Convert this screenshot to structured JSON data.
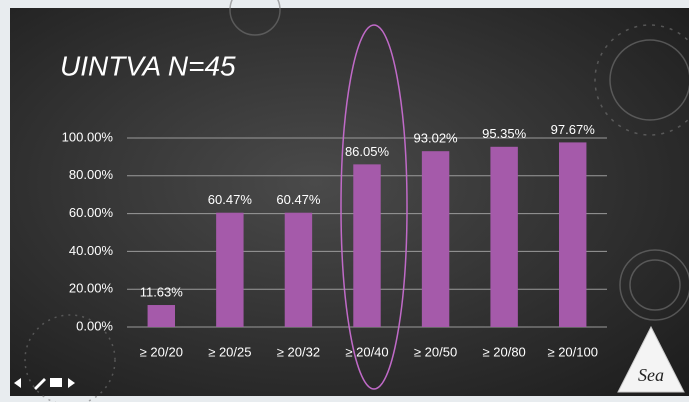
{
  "chart_data": {
    "type": "bar",
    "title": "UINTVA  N=45",
    "categories": [
      "≥ 20/20",
      "≥ 20/25",
      "≥ 20/32",
      "≥ 20/40",
      "≥ 20/50",
      "≥ 20/80",
      "≥ 20/100"
    ],
    "values": [
      11.63,
      60.47,
      60.47,
      86.05,
      93.02,
      95.35,
      97.67
    ],
    "value_labels": [
      "11.63%",
      "60.47%",
      "60.47%",
      "86.05%",
      "93.02%",
      "95.35%",
      "97.67%"
    ],
    "color": "#a55aaa",
    "ylim": [
      0,
      100
    ],
    "yticks": [
      {
        "value": 0,
        "label": "0.00%"
      },
      {
        "value": 20,
        "label": "20.00%"
      },
      {
        "value": 40,
        "label": "40.00%"
      },
      {
        "value": 60,
        "label": "60.00%"
      },
      {
        "value": 80,
        "label": "80.00%"
      },
      {
        "value": 100,
        "label": "100.00%"
      }
    ],
    "grid": true
  },
  "logo": "Sea"
}
